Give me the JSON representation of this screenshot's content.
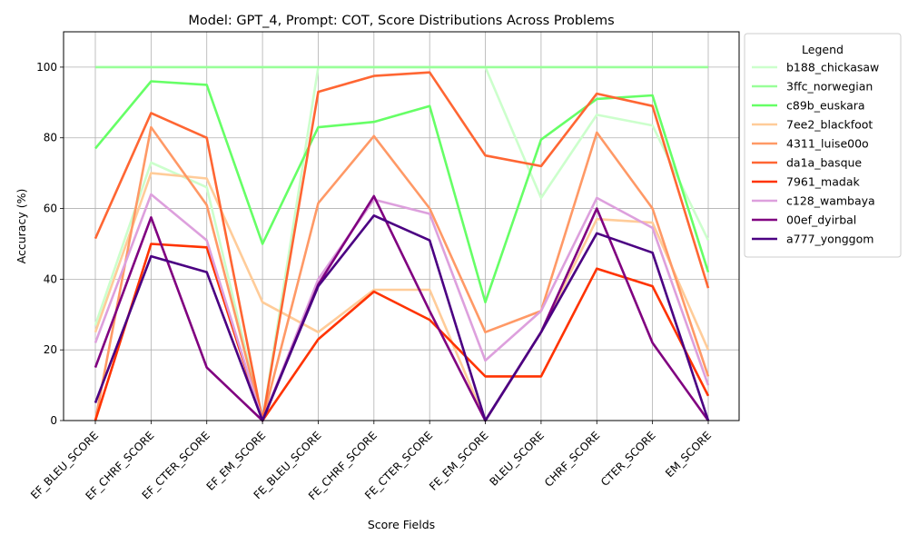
{
  "chart_data": {
    "type": "line",
    "title": "Model: GPT_4, Prompt: COT, Score Distributions Across Problems",
    "xlabel": "Score Fields",
    "ylabel": "Accuracy (%)",
    "ylim": [
      0,
      110
    ],
    "yticks": [
      0,
      20,
      40,
      60,
      80,
      100
    ],
    "grid": true,
    "legend_title": "Legend",
    "legend_position": "outside-right",
    "categories": [
      "EF_BLEU_SCORE",
      "EF_CHRF_SCORE",
      "EF_CTER_SCORE",
      "EF_EM_SCORE",
      "FE_BLEU_SCORE",
      "FE_CHRF_SCORE",
      "FE_CTER_SCORE",
      "FE_EM_SCORE",
      "BLEU_SCORE",
      "CHRF_SCORE",
      "CTER_SCORE",
      "EM_SCORE"
    ],
    "series": [
      {
        "name": "b188_chickasaw",
        "color": "#ccffcc",
        "values": [
          27,
          73,
          66,
          0,
          100,
          100,
          100,
          100,
          63,
          86.5,
          83.5,
          51
        ]
      },
      {
        "name": "3ffc_norwegian",
        "color": "#99ff99",
        "values": [
          100,
          100,
          100,
          100,
          100,
          100,
          100,
          100,
          100,
          100,
          100,
          100
        ]
      },
      {
        "name": "c89b_euskara",
        "color": "#66ff66",
        "values": [
          77,
          96,
          95,
          50,
          83,
          84.5,
          89,
          33.5,
          79.5,
          91,
          92,
          42
        ]
      },
      {
        "name": "7ee2_blackfoot",
        "color": "#ffcc99",
        "values": [
          25,
          70,
          68.5,
          33.5,
          25,
          37,
          37,
          0,
          25,
          57,
          56,
          20
        ]
      },
      {
        "name": "4311_luise00o",
        "color": "#ff9966",
        "values": [
          0,
          83,
          61,
          0,
          61.5,
          80.5,
          60,
          25,
          31,
          81.5,
          60,
          12.5
        ]
      },
      {
        "name": "da1a_basque",
        "color": "#ff6633",
        "values": [
          51.5,
          87,
          80,
          0,
          93,
          97.5,
          98.5,
          75,
          72,
          92.5,
          89,
          37.5
        ]
      },
      {
        "name": "7961_madak",
        "color": "#ff3300",
        "values": [
          0,
          50,
          49,
          0,
          23,
          36.5,
          28.5,
          12.5,
          12.5,
          43,
          38,
          7
        ]
      },
      {
        "name": "c128_wambaya",
        "color": "#dda0dd",
        "values": [
          22,
          64,
          51,
          0,
          40,
          62.5,
          58.5,
          17,
          31,
          63,
          54.5,
          10
        ]
      },
      {
        "name": "00ef_dyirbal",
        "color": "#800080",
        "values": [
          15,
          57.5,
          15,
          0,
          38.5,
          63.5,
          31,
          0,
          25,
          60,
          22,
          0
        ]
      },
      {
        "name": "a777_yonggom",
        "color": "#4b0082",
        "values": [
          5,
          46.5,
          42,
          0,
          38,
          58,
          51,
          0,
          25,
          53,
          47.5,
          0
        ]
      }
    ]
  }
}
